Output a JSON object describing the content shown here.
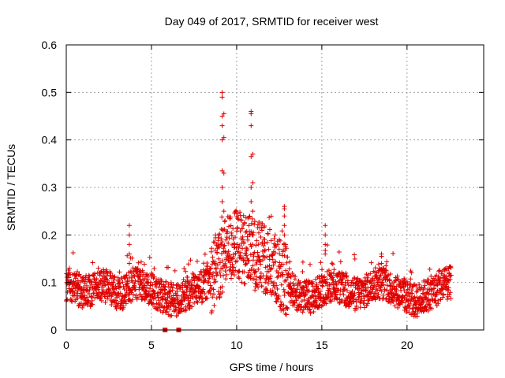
{
  "chart_data": {
    "type": "scatter",
    "title": "Day 049 of 2017, SRMTID for receiver west",
    "xlabel": "GPS time / hours",
    "ylabel": "SRMTID / TECUs",
    "xlim": [
      0,
      24.5
    ],
    "ylim": [
      0,
      0.6
    ],
    "xticks": [
      0,
      5,
      10,
      15,
      20
    ],
    "xtick_labels": [
      "0",
      "5",
      "10",
      "15",
      "20"
    ],
    "yticks": [
      0,
      0.1,
      0.2,
      0.3,
      0.4,
      0.5,
      0.6
    ],
    "ytick_labels": [
      "0",
      "0.1",
      "0.2",
      "0.3",
      "0.4",
      "0.5",
      "0.6"
    ],
    "grid": true,
    "legend": "none",
    "marker": "+",
    "marker_color": "#e00000",
    "series": [
      {
        "name": "SRMTID",
        "baseline_profile": {
          "x": [
            0,
            0.5,
            1,
            1.5,
            2,
            2.5,
            3,
            3.5,
            4,
            4.5,
            5,
            5.5,
            6,
            6.5,
            7,
            7.5,
            8,
            8.5,
            9,
            9.5,
            10,
            10.5,
            11,
            11.5,
            12,
            12.5,
            13,
            13.5,
            14,
            14.5,
            15,
            15.5,
            16,
            16.5,
            17,
            17.5,
            18,
            18.5,
            19,
            19.5,
            20,
            20.5,
            21,
            21.5,
            22,
            22.6
          ],
          "y": [
            0.09,
            0.085,
            0.08,
            0.085,
            0.095,
            0.09,
            0.075,
            0.08,
            0.1,
            0.095,
            0.085,
            0.075,
            0.065,
            0.06,
            0.075,
            0.085,
            0.09,
            0.11,
            0.14,
            0.17,
            0.18,
            0.17,
            0.16,
            0.15,
            0.14,
            0.12,
            0.1,
            0.075,
            0.07,
            0.07,
            0.085,
            0.095,
            0.09,
            0.08,
            0.075,
            0.08,
            0.095,
            0.1,
            0.09,
            0.08,
            0.07,
            0.06,
            0.07,
            0.08,
            0.09,
            0.1
          ]
        },
        "spikes": [
          {
            "x": 3.7,
            "y": [
              0.14,
              0.16,
              0.18,
              0.2,
              0.22
            ]
          },
          {
            "x": 9.15,
            "y": [
              0.27,
              0.3,
              0.335,
              0.4,
              0.43,
              0.45,
              0.49,
              0.5
            ]
          },
          {
            "x": 9.25,
            "y": [
              0.25,
              0.33,
              0.405,
              0.455
            ]
          },
          {
            "x": 10.85,
            "y": [
              0.27,
              0.3,
              0.365,
              0.43,
              0.455,
              0.46
            ]
          },
          {
            "x": 10.95,
            "y": [
              0.25,
              0.31,
              0.37
            ]
          },
          {
            "x": 12.8,
            "y": [
              0.2,
              0.22,
              0.24,
              0.255,
              0.26
            ]
          },
          {
            "x": 15.2,
            "y": [
              0.16,
              0.18,
              0.2,
              0.22
            ]
          },
          {
            "x": 18.5,
            "y": [
              0.14,
              0.155,
              0.16
            ]
          }
        ],
        "zero_points": [
          {
            "x": 5.8,
            "y": 0
          },
          {
            "x": 6.6,
            "y": 0
          }
        ],
        "x_end": 22.6
      }
    ]
  }
}
